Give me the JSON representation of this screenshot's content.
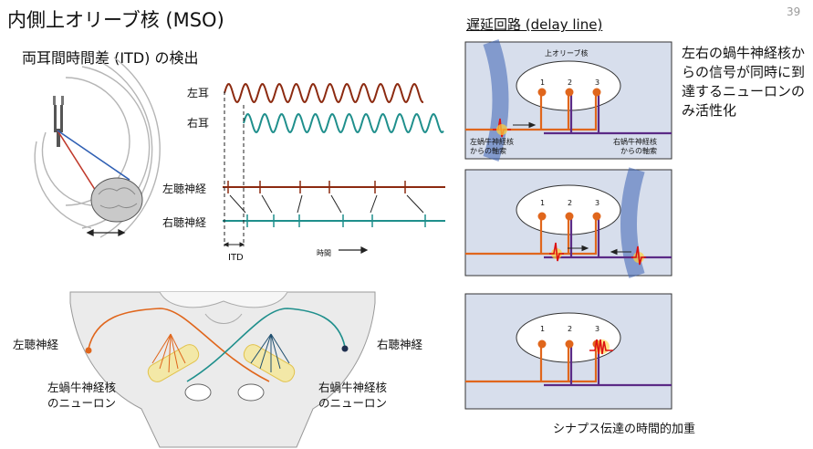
{
  "slide": {
    "title": "内側上オリーブ核 (MSO)",
    "page_number": "39"
  },
  "itd_section": {
    "subtitle": "両耳間時間差 (ITD) の検出",
    "left_ear": "左耳",
    "right_ear": "右耳",
    "left_auditory_nerve": "左聴神経",
    "right_auditory_nerve": "右聴神経",
    "itd_label": "ITD",
    "time_label": "時間"
  },
  "brainstem_section": {
    "left_nerve_label": "左聴神経",
    "right_nerve_label": "右聴神経",
    "left_nucleus_line1": "左蝸牛神経核",
    "left_nucleus_line2": "のニューロン",
    "right_nucleus_line1": "右蝸牛神経核",
    "right_nucleus_line2": "のニューロン"
  },
  "delay_line": {
    "heading": "遅延回路 (delay line)",
    "panel_title": "上オリーブ核",
    "neuron_numbers": [
      "1",
      "2",
      "3"
    ],
    "left_axon_line1": "左蝸牛神経核",
    "left_axon_line2": "からの軸索",
    "right_axon_line1": "右蝸牛神経核",
    "right_axon_line2": "からの軸索",
    "side_note": "左右の蝸牛神経核からの信号が同時に到達するニューロンのみ活性化",
    "caption": "シナプス伝達の時間的加重"
  },
  "colors": {
    "left_signal": "#8c2a10",
    "right_signal": "#1f8f8c",
    "orange_axon": "#e0661c",
    "purple_axon": "#5b2a86",
    "panel_bg": "#d7deec",
    "wave_blue": "#3d63b5"
  }
}
